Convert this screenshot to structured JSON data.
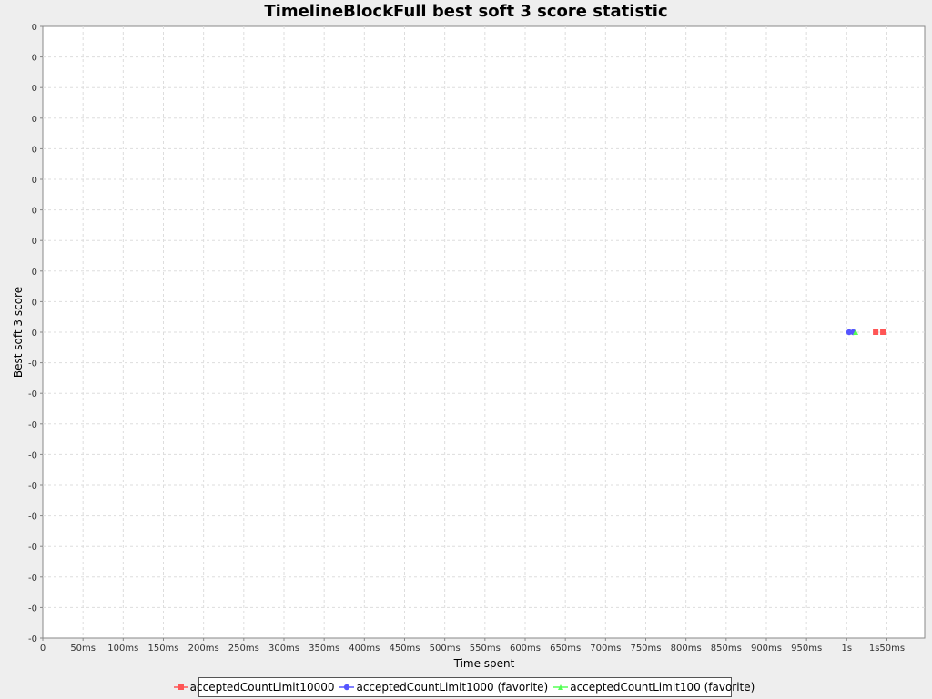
{
  "chart_data": {
    "type": "scatter",
    "title": "TimelineBlockFull best soft 3 score statistic",
    "xlabel": "Time spent",
    "ylabel": "Best soft 3 score",
    "x_ticks": [
      {
        "value": 0,
        "label": "0"
      },
      {
        "value": 50,
        "label": "50ms"
      },
      {
        "value": 100,
        "label": "100ms"
      },
      {
        "value": 150,
        "label": "150ms"
      },
      {
        "value": 200,
        "label": "200ms"
      },
      {
        "value": 250,
        "label": "250ms"
      },
      {
        "value": 300,
        "label": "300ms"
      },
      {
        "value": 350,
        "label": "350ms"
      },
      {
        "value": 400,
        "label": "400ms"
      },
      {
        "value": 450,
        "label": "450ms"
      },
      {
        "value": 500,
        "label": "500ms"
      },
      {
        "value": 550,
        "label": "550ms"
      },
      {
        "value": 600,
        "label": "600ms"
      },
      {
        "value": 650,
        "label": "650ms"
      },
      {
        "value": 700,
        "label": "700ms"
      },
      {
        "value": 750,
        "label": "750ms"
      },
      {
        "value": 800,
        "label": "800ms"
      },
      {
        "value": 850,
        "label": "850ms"
      },
      {
        "value": 900,
        "label": "900ms"
      },
      {
        "value": 950,
        "label": "950ms"
      },
      {
        "value": 1000,
        "label": "1s"
      },
      {
        "value": 1050,
        "label": "1s50ms"
      }
    ],
    "xlim": [
      0,
      1097
    ],
    "y_ticks": [
      "0",
      "0",
      "0",
      "0",
      "0",
      "0",
      "0",
      "0",
      "0",
      "0",
      "0",
      "-0",
      "-0",
      "-0",
      "-0",
      "-0",
      "-0",
      "-0",
      "-0",
      "-0",
      "-0"
    ],
    "grid": true,
    "legend_position": "bottom",
    "series": [
      {
        "name": "acceptedCountLimit10000",
        "color": "#ff5555",
        "marker": "square",
        "points": [
          {
            "x": 1036,
            "y": 0
          },
          {
            "x": 1045,
            "y": 0
          }
        ]
      },
      {
        "name": "acceptedCountLimit1000 (favorite)",
        "color": "#5555ff",
        "marker": "circle",
        "points": [
          {
            "x": 1003,
            "y": 0
          },
          {
            "x": 1008,
            "y": 0
          }
        ]
      },
      {
        "name": "acceptedCountLimit100 (favorite)",
        "color": "#55ff55",
        "marker": "triangle",
        "points": [
          {
            "x": 1011,
            "y": 0
          }
        ]
      }
    ]
  }
}
